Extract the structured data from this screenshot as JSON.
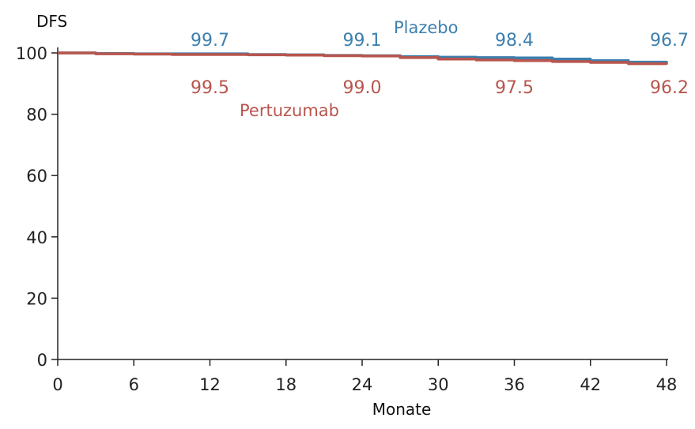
{
  "chart_data": {
    "type": "line",
    "title": "",
    "xlabel": "Monate",
    "ylabel": "DFS",
    "xlim": [
      0,
      48
    ],
    "ylim": [
      0,
      100
    ],
    "xticks": [
      0,
      6,
      12,
      18,
      24,
      30,
      36,
      42,
      48
    ],
    "yticks": [
      0,
      20,
      40,
      60,
      80,
      100
    ],
    "grid": false,
    "series": [
      {
        "name": "Plazebo",
        "color": "#3d7fae",
        "x": [
          0,
          3,
          6,
          9,
          12,
          15,
          18,
          21,
          24,
          27,
          30,
          33,
          36,
          39,
          42,
          45,
          48
        ],
        "y": [
          100,
          99.8,
          99.7,
          99.7,
          99.7,
          99.5,
          99.4,
          99.2,
          99.1,
          98.8,
          98.6,
          98.5,
          98.4,
          98.0,
          97.5,
          97.0,
          96.7
        ],
        "labels": [
          {
            "x": 12,
            "text": "99.7"
          },
          {
            "x": 24,
            "text": "99.1"
          },
          {
            "x": 36,
            "text": "98.4"
          },
          {
            "x": 48,
            "text": "96.7"
          }
        ]
      },
      {
        "name": "Pertuzumab",
        "color": "#b8554d",
        "x": [
          0,
          3,
          6,
          9,
          12,
          15,
          18,
          21,
          24,
          27,
          30,
          33,
          36,
          39,
          42,
          45,
          48
        ],
        "y": [
          100,
          99.7,
          99.6,
          99.5,
          99.5,
          99.4,
          99.3,
          99.1,
          99.0,
          98.5,
          98.0,
          97.7,
          97.5,
          97.2,
          96.9,
          96.5,
          96.2
        ],
        "labels": [
          {
            "x": 12,
            "text": "99.5"
          },
          {
            "x": 24,
            "text": "99.0"
          },
          {
            "x": 36,
            "text": "97.5"
          },
          {
            "x": 48,
            "text": "96.2"
          }
        ]
      }
    ]
  }
}
